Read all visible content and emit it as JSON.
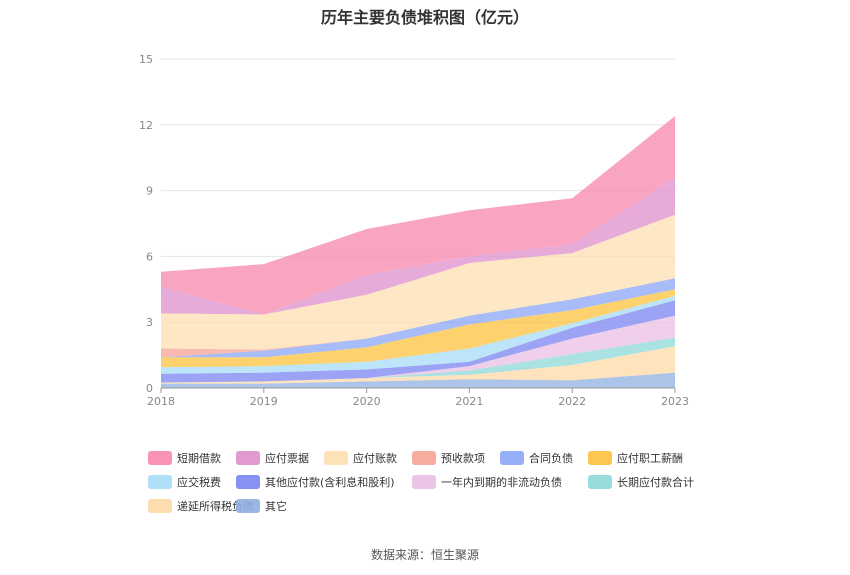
{
  "chart_data": {
    "type": "area",
    "stacked": true,
    "title": "历年主要负债堆积图（亿元）",
    "x": [
      "2018",
      "2019",
      "2020",
      "2021",
      "2022",
      "2023"
    ],
    "ylim": [
      0,
      15
    ],
    "yticks": [
      0,
      3,
      6,
      9,
      12,
      15
    ],
    "grid": true,
    "legend_position": "bottom",
    "series": [
      {
        "name": "其它",
        "color": "#8fb0e0",
        "values": [
          0.2,
          0.2,
          0.3,
          0.4,
          0.35,
          0.7
        ]
      },
      {
        "name": "递延所得税负债",
        "color": "#fddaa6",
        "values": [
          0.05,
          0.1,
          0.15,
          0.2,
          0.7,
          1.2
        ]
      },
      {
        "name": "长期应付款合计",
        "color": "#8ed8d8",
        "values": [
          0.0,
          0.0,
          0.0,
          0.2,
          0.5,
          0.4
        ]
      },
      {
        "name": "一年内到期的非流动负债",
        "color": "#e9bfe3",
        "values": [
          0.0,
          0.0,
          0.0,
          0.2,
          0.7,
          1.0
        ]
      },
      {
        "name": "其他应付款(含利息和股利)",
        "color": "#7b84f0",
        "values": [
          0.4,
          0.4,
          0.4,
          0.2,
          0.5,
          0.7
        ]
      },
      {
        "name": "应交税费",
        "color": "#a7dcf7",
        "values": [
          0.3,
          0.3,
          0.35,
          0.6,
          0.2,
          0.2
        ]
      },
      {
        "name": "应付职工薪酬",
        "color": "#fbc13e",
        "values": [
          0.45,
          0.4,
          0.65,
          1.1,
          0.6,
          0.3
        ]
      },
      {
        "name": "合同负债",
        "color": "#8aa5f5",
        "values": [
          0.0,
          0.3,
          0.4,
          0.4,
          0.5,
          0.5
        ]
      },
      {
        "name": "预收款项",
        "color": "#f6a395",
        "values": [
          0.4,
          0.05,
          0.0,
          0.0,
          0.0,
          0.0
        ]
      },
      {
        "name": "应付账款",
        "color": "#fddfb0",
        "values": [
          1.6,
          1.6,
          2.0,
          2.4,
          2.1,
          2.9
        ]
      },
      {
        "name": "应付票据",
        "color": "#dd8fcb",
        "values": [
          1.2,
          0.0,
          0.9,
          0.3,
          0.4,
          1.7
        ]
      },
      {
        "name": "短期借款",
        "color": "#f787ac",
        "values": [
          0.7,
          2.3,
          2.1,
          2.1,
          2.1,
          2.8
        ]
      }
    ],
    "legend_order": [
      "短期借款",
      "应付票据",
      "应付账款",
      "预收款项",
      "合同负债",
      "应付职工薪酬",
      "应交税费",
      "其他应付款(含利息和股利)",
      "一年内到期的非流动负债",
      "长期应付款合计",
      "递延所得税负债",
      "其它"
    ]
  },
  "source_note": "数据来源：恒生聚源"
}
